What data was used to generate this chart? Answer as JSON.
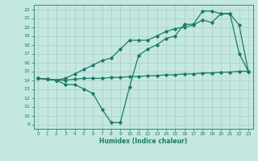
{
  "xlabel": "Humidex (Indice chaleur)",
  "bg_color": "#c4e8e0",
  "line_color": "#1a7a6a",
  "grid_color": "#a8ccc8",
  "xlim": [
    -0.5,
    23.5
  ],
  "ylim": [
    8.5,
    22.5
  ],
  "yticks": [
    9,
    10,
    11,
    12,
    13,
    14,
    15,
    16,
    17,
    18,
    19,
    20,
    21,
    22
  ],
  "xticks": [
    0,
    1,
    2,
    3,
    4,
    5,
    6,
    7,
    8,
    9,
    10,
    11,
    12,
    13,
    14,
    15,
    16,
    17,
    18,
    19,
    20,
    21,
    22,
    23
  ],
  "line1_x": [
    0,
    1,
    2,
    3,
    4,
    5,
    6,
    7,
    8,
    9,
    10,
    11,
    12,
    13,
    14,
    15,
    16,
    17,
    18,
    19,
    20,
    21,
    22,
    23
  ],
  "line1_y": [
    14.2,
    14.1,
    14.0,
    14.0,
    14.1,
    14.2,
    14.2,
    14.2,
    14.3,
    14.3,
    14.4,
    14.4,
    14.5,
    14.5,
    14.6,
    14.6,
    14.7,
    14.7,
    14.8,
    14.8,
    14.9,
    14.9,
    15.0,
    15.0
  ],
  "line2_x": [
    0,
    1,
    2,
    3,
    4,
    5,
    6,
    7,
    8,
    9,
    10,
    11,
    12,
    13,
    14,
    15,
    16,
    17,
    18,
    19,
    20,
    21,
    22,
    23
  ],
  "line2_y": [
    14.2,
    14.1,
    14.0,
    14.2,
    14.7,
    15.2,
    15.7,
    16.2,
    16.5,
    17.5,
    18.5,
    18.5,
    18.5,
    19.0,
    19.5,
    19.8,
    20.0,
    20.2,
    20.8,
    20.5,
    21.5,
    21.5,
    20.2,
    15.0
  ],
  "line3_x": [
    0,
    1,
    2,
    3,
    4,
    5,
    6,
    7,
    8,
    9,
    10,
    11,
    12,
    13,
    14,
    15,
    16,
    17,
    18,
    19,
    20,
    21,
    22,
    23
  ],
  "line3_y": [
    14.2,
    14.1,
    14.0,
    13.5,
    13.5,
    13.0,
    12.5,
    10.7,
    9.2,
    9.2,
    13.2,
    16.8,
    17.5,
    18.0,
    18.7,
    19.0,
    20.3,
    20.3,
    21.8,
    21.8,
    21.5,
    21.5,
    17.0,
    15.0
  ]
}
